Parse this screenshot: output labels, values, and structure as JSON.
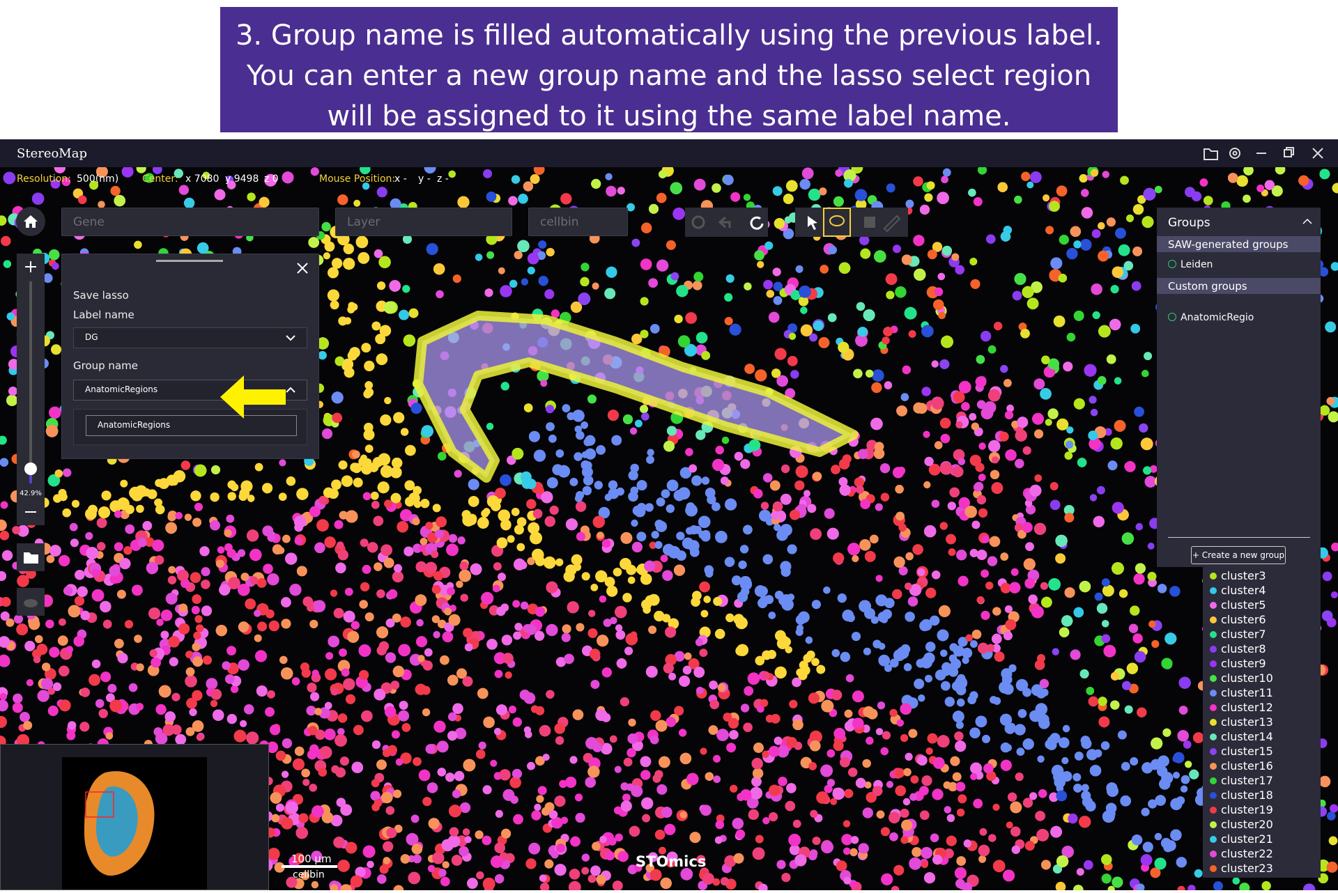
{
  "banner": {
    "lines": [
      "3. Group name is filled automatically using the previous label.",
      "You can enter a new group name and the lasso select region",
      "will be assigned to it using the same label name."
    ]
  },
  "title_bar": {
    "title": "StereoMap"
  },
  "status_bar": {
    "resolution_label": "Resolution:",
    "resolution": "500(nm)",
    "center_label": "Center:",
    "center_x": "x 7080",
    "center_y": "y 9498",
    "center_z": "z 0",
    "mouse_label": "Mouse Position:",
    "mouse_x": "x -",
    "mouse_y": "y -",
    "mouse_z": "z -"
  },
  "toolbar": {
    "gene": "Gene",
    "layer": "Layer",
    "cellbin": "cellbin"
  },
  "zoom": {
    "level": "42.9%"
  },
  "save_lasso": {
    "title": "Save lasso",
    "label_name_label": "Label name",
    "label_name": "DG",
    "group_name_label": "Group name",
    "group_name": "AnatomicRegions",
    "options": [
      "AnatomicRegions"
    ]
  },
  "groups_panel": {
    "title": "Groups",
    "sections": [
      {
        "title": "SAW-generated groups",
        "items": [
          "Leiden"
        ]
      },
      {
        "title": "Custom groups",
        "items": [
          "AnatomicRegio"
        ]
      }
    ],
    "create_button": "+ Create a new group"
  },
  "legend": {
    "items": [
      {
        "name": "cluster3",
        "color": "#b5e61d"
      },
      {
        "name": "cluster4",
        "color": "#33c9e8"
      },
      {
        "name": "cluster5",
        "color": "#f06ae8"
      },
      {
        "name": "cluster6",
        "color": "#fcc83a"
      },
      {
        "name": "cluster7",
        "color": "#22e38a"
      },
      {
        "name": "cluster8",
        "color": "#8a3cf0"
      },
      {
        "name": "cluster9",
        "color": "#9a35f2"
      },
      {
        "name": "cluster10",
        "color": "#46e046"
      },
      {
        "name": "cluster11",
        "color": "#6b8cf2"
      },
      {
        "name": "cluster12",
        "color": "#f233c5"
      },
      {
        "name": "cluster13",
        "color": "#e8e02e"
      },
      {
        "name": "cluster14",
        "color": "#66e8b8"
      },
      {
        "name": "cluster15",
        "color": "#8a44f2"
      },
      {
        "name": "cluster16",
        "color": "#f7935a"
      },
      {
        "name": "cluster17",
        "color": "#33d433"
      },
      {
        "name": "cluster18",
        "color": "#2850d8"
      },
      {
        "name": "cluster19",
        "color": "#f23a4a"
      },
      {
        "name": "cluster20",
        "color": "#c2f24a"
      },
      {
        "name": "cluster21",
        "color": "#38cbe6"
      },
      {
        "name": "cluster22",
        "color": "#e24ad8"
      },
      {
        "name": "cluster23",
        "color": "#f5622a"
      }
    ]
  },
  "scale_bar": {
    "length": "100 μm",
    "layer": "cellbin"
  },
  "watermark": "STOmics"
}
